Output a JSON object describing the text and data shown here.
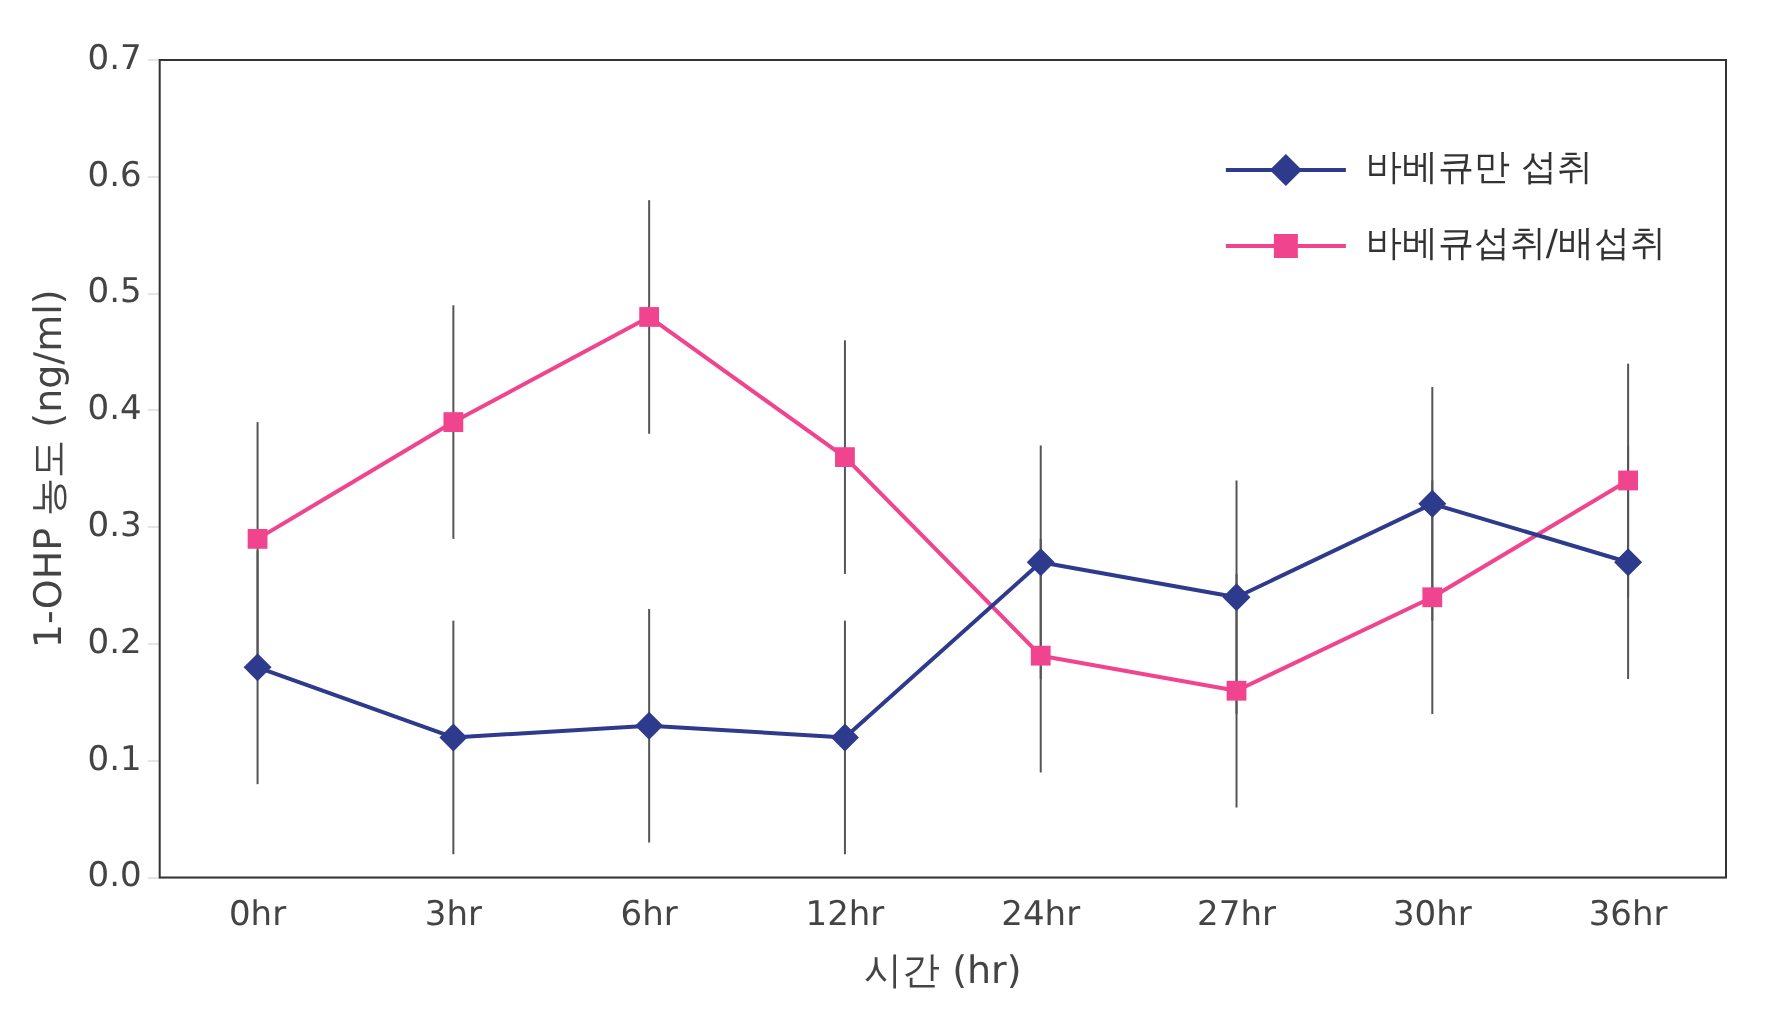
{
  "chart_data": {
    "type": "line",
    "xlabel": "시간 (hr)",
    "ylabel": "1-OHP 농도 (ng/ml)",
    "categories": [
      "0hr",
      "3hr",
      "6hr",
      "12hr",
      "24hr",
      "27hr",
      "30hr",
      "36hr"
    ],
    "series": [
      {
        "name": "바베큐만 섭취",
        "color": "#2e3a8c",
        "marker": "diamond",
        "values": [
          0.18,
          0.12,
          0.13,
          0.12,
          0.27,
          0.24,
          0.32,
          0.27
        ],
        "errors": [
          0.1,
          0.1,
          0.1,
          0.1,
          0.1,
          0.1,
          0.1,
          0.1
        ]
      },
      {
        "name": "바베큐섭취/배섭취",
        "color": "#f0448f",
        "marker": "square",
        "values": [
          0.29,
          0.39,
          0.48,
          0.36,
          0.19,
          0.16,
          0.24,
          0.34
        ],
        "errors": [
          0.1,
          0.1,
          0.1,
          0.1,
          0.1,
          0.1,
          0.1,
          0.1
        ]
      }
    ],
    "ylim": [
      0,
      0.7
    ],
    "yticks": [
      {
        "value": 0,
        "label": "0.0"
      },
      {
        "value": 0.1,
        "label": "0.1"
      },
      {
        "value": 0.2,
        "label": "0.2"
      },
      {
        "value": 0.3,
        "label": "0.3"
      },
      {
        "value": 0.4,
        "label": "0.4"
      },
      {
        "value": 0.5,
        "label": "0.5"
      },
      {
        "value": 0.6,
        "label": "0.6"
      },
      {
        "value": 0.7,
        "label": "0.7"
      }
    ],
    "grid": false,
    "legend": "top right",
    "line_style": "solid"
  }
}
